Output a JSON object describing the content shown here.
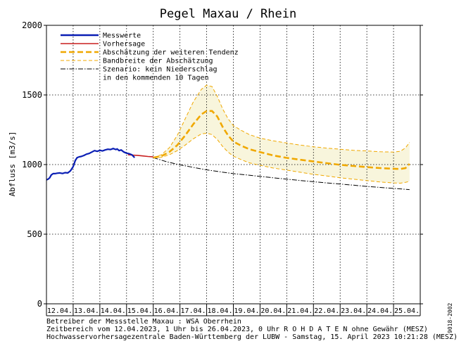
{
  "chart_data": {
    "type": "line",
    "title": "Pegel Maxau / Rhein",
    "ylabel": "Abfluss [m3/s]",
    "ylim": [
      0,
      2000
    ],
    "yticks": [
      0,
      500,
      1000,
      1500,
      2000
    ],
    "ytick_labels": [
      "0",
      "500",
      "1000",
      "1500",
      "2000"
    ],
    "xlim": [
      0,
      14
    ],
    "x_units": "days since 12.04.2023 00:00",
    "categories": [
      "12.04.",
      "13.04.",
      "14.04.",
      "15.04.",
      "16.04.",
      "17.04.",
      "18.04.",
      "19.04.",
      "20.04.",
      "21.04.",
      "22.04.",
      "23.04.",
      "24.04.",
      "25.04."
    ],
    "grid": true,
    "legend": [
      {
        "label": "Messwerte",
        "color": "#0a1eb4",
        "style": "solid-thick"
      },
      {
        "label": "Vorhersage",
        "color": "#c81e1e",
        "style": "solid"
      },
      {
        "label": "Abschätzung der weiteren Tendenz",
        "color": "#f0a800",
        "style": "dashed-thick"
      },
      {
        "label": "Bandbreite der Abschätzung",
        "color": "#f0a800",
        "style": "dashed-thin"
      },
      {
        "label": "Szenario: kein Niederschlag",
        "color": "#000000",
        "style": "dash-dot"
      },
      {
        "label": "in den kommenden 10 Tagen",
        "color": "",
        "style": "none"
      }
    ],
    "band_fill_color": "#f8f5dc",
    "series": [
      {
        "name": "Messwerte",
        "color": "#0a1eb4",
        "x": [
          0.0,
          0.06,
          0.12,
          0.18,
          0.25,
          0.32,
          0.4,
          0.5,
          0.6,
          0.7,
          0.8,
          0.9,
          1.0,
          1.08,
          1.15,
          1.22,
          1.3,
          1.4,
          1.5,
          1.6,
          1.7,
          1.8,
          1.9,
          2.0,
          2.1,
          2.2,
          2.3,
          2.4,
          2.5,
          2.6,
          2.65,
          2.72,
          2.8,
          2.9,
          3.0,
          3.1,
          3.2,
          3.3
        ],
        "y": [
          890,
          895,
          905,
          925,
          935,
          935,
          938,
          940,
          936,
          942,
          940,
          955,
          985,
          1030,
          1050,
          1055,
          1058,
          1065,
          1075,
          1080,
          1090,
          1100,
          1095,
          1102,
          1098,
          1105,
          1110,
          1108,
          1115,
          1108,
          1112,
          1100,
          1105,
          1090,
          1082,
          1078,
          1070,
          1050
        ]
      },
      {
        "name": "Vorhersage",
        "color": "#c81e1e",
        "x": [
          3.05,
          3.2,
          3.4,
          3.6,
          3.8,
          4.0
        ],
        "y": [
          1070,
          1068,
          1066,
          1062,
          1058,
          1055
        ]
      },
      {
        "name": "Abschätzung der weiteren Tendenz",
        "color": "#f0a800",
        "x": [
          4.0,
          4.3,
          4.6,
          4.9,
          5.2,
          5.5,
          5.8,
          6.0,
          6.2,
          6.4,
          6.6,
          6.8,
          7.0,
          7.3,
          7.6,
          8.0,
          8.5,
          9.0,
          9.5,
          10.0,
          10.5,
          11.0,
          11.5,
          12.0,
          12.5,
          13.0,
          13.25,
          13.45,
          13.6
        ],
        "y": [
          1050,
          1060,
          1090,
          1140,
          1210,
          1290,
          1360,
          1385,
          1385,
          1345,
          1270,
          1210,
          1165,
          1135,
          1110,
          1090,
          1065,
          1048,
          1035,
          1022,
          1010,
          998,
          990,
          982,
          975,
          970,
          968,
          975,
          1005
        ]
      },
      {
        "name": "Bandbreite der Abschätzung (oben)",
        "color": "#f0a800",
        "x": [
          4.0,
          4.3,
          4.6,
          4.9,
          5.2,
          5.5,
          5.8,
          6.0,
          6.2,
          6.4,
          6.6,
          6.8,
          7.0,
          7.3,
          7.6,
          8.0,
          8.5,
          9.0,
          9.5,
          10.0,
          10.5,
          11.0,
          11.5,
          12.0,
          12.5,
          13.0,
          13.25,
          13.45,
          13.6
        ],
        "y": [
          1050,
          1070,
          1120,
          1210,
          1330,
          1450,
          1540,
          1570,
          1560,
          1490,
          1400,
          1330,
          1280,
          1245,
          1215,
          1190,
          1170,
          1155,
          1140,
          1128,
          1118,
          1110,
          1102,
          1098,
          1092,
          1090,
          1095,
          1120,
          1160
        ]
      },
      {
        "name": "Bandbreite der Abschätzung (unten)",
        "color": "#f0a800",
        "x": [
          4.0,
          4.3,
          4.6,
          4.9,
          5.2,
          5.5,
          5.8,
          6.0,
          6.2,
          6.4,
          6.6,
          6.8,
          7.0,
          7.3,
          7.6,
          8.0,
          8.5,
          9.0,
          9.5,
          10.0,
          10.5,
          11.0,
          11.5,
          12.0,
          12.5,
          13.0,
          13.25,
          13.45,
          13.6
        ],
        "y": [
          1050,
          1052,
          1070,
          1100,
          1140,
          1185,
          1220,
          1225,
          1215,
          1180,
          1130,
          1090,
          1060,
          1035,
          1012,
          995,
          975,
          960,
          945,
          930,
          918,
          905,
          895,
          885,
          875,
          868,
          866,
          872,
          880
        ]
      },
      {
        "name": "Szenario: kein Niederschlag",
        "color": "#000000",
        "x": [
          4.0,
          4.5,
          5.0,
          5.5,
          6.0,
          6.5,
          7.0,
          7.5,
          8.0,
          8.5,
          9.0,
          9.5,
          10.0,
          10.5,
          11.0,
          11.5,
          12.0,
          12.5,
          13.0,
          13.6
        ],
        "y": [
          1050,
          1020,
          998,
          980,
          962,
          948,
          935,
          925,
          915,
          905,
          895,
          886,
          877,
          868,
          860,
          852,
          843,
          836,
          829,
          820
        ]
      }
    ]
  },
  "side_label": "9018-2002",
  "footer": {
    "line1": "Betreiber der Messstelle Maxau : WSA Oberrhein",
    "line2": "Zeitbereich vom 12.04.2023, 1 Uhr bis 26.04.2023, 0 Uhr   R O H D A T E N ohne Gewähr (MESZ)",
    "line3": "Hochwasservorhersagezentrale Baden-Württemberg der LUBW - Samstag, 15. April 2023 10:21:28 (MESZ)"
  }
}
